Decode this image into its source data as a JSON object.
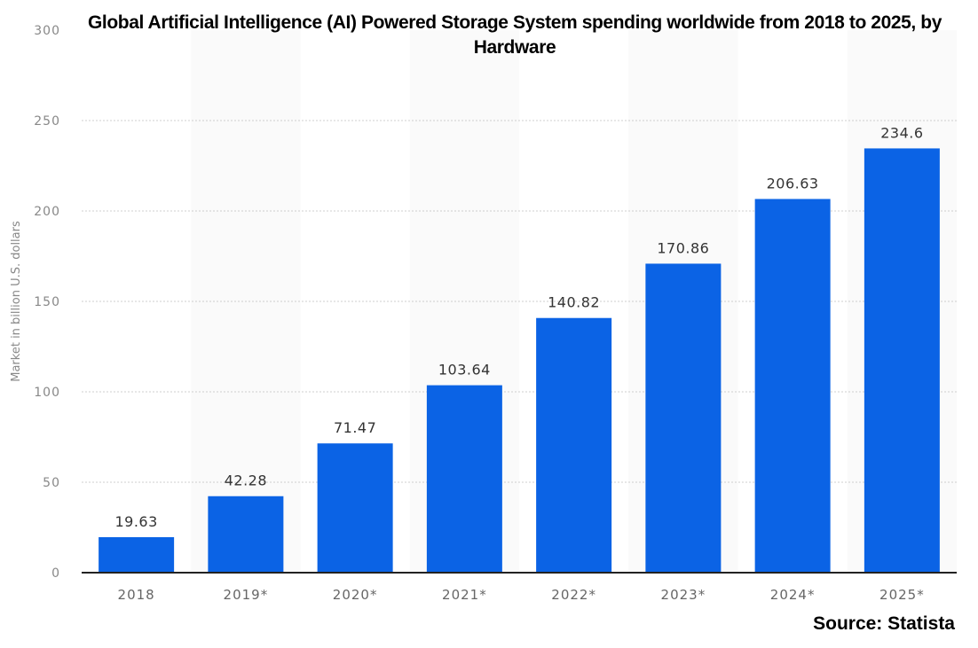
{
  "chart_data": {
    "type": "bar",
    "title": "Global Artificial Intelligence (AI) Powered Storage System spending worldwide from 2018 to 2025, by Hardware",
    "xlabel": "",
    "ylabel": "Market in billion U.S. dollars",
    "ylim": [
      0,
      300
    ],
    "yticks": [
      0,
      50,
      100,
      150,
      200,
      250,
      300
    ],
    "grid": true,
    "categories": [
      "2018",
      "2019*",
      "2020*",
      "2021*",
      "2022*",
      "2023*",
      "2024*",
      "2025*"
    ],
    "values": [
      19.63,
      42.28,
      71.47,
      103.64,
      140.82,
      170.86,
      206.63,
      234.6
    ],
    "data_labels": [
      "19.63",
      "42.28",
      "71.47",
      "103.64",
      "140.82",
      "170.86",
      "206.63",
      "234.6"
    ],
    "bar_color": "#0b63e5",
    "source": "Source: Statista"
  }
}
